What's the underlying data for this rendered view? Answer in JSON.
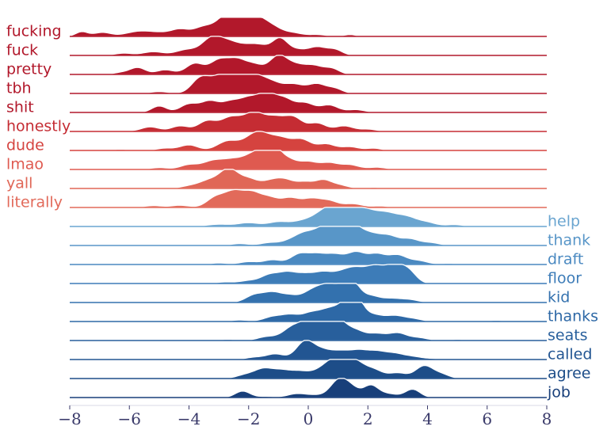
{
  "chart_data": {
    "type": "ridgeline",
    "title": "",
    "xlabel": "",
    "ylabel": "",
    "xlim": [
      -8,
      8
    ],
    "xticks": [
      "−8",
      "−6",
      "−4",
      "−2",
      "0",
      "2",
      "4",
      "6",
      "8"
    ],
    "xtick_values": [
      -8,
      -6,
      -4,
      -2,
      0,
      2,
      4,
      6,
      8
    ],
    "series": [
      {
        "name": "fucking",
        "side": "left",
        "color": "#b2182b",
        "peaks": [
          [
            -7.6,
            0.25,
            0.2
          ],
          [
            -6.9,
            0.22,
            0.3
          ],
          [
            -6.0,
            0.12,
            0.3
          ],
          [
            -5.5,
            0.25,
            0.35
          ],
          [
            -4.9,
            0.15,
            0.3
          ],
          [
            -4.3,
            0.38,
            0.3
          ],
          [
            -3.6,
            0.35,
            0.3
          ],
          [
            -3.0,
            0.5,
            0.4
          ],
          [
            -2.6,
            0.55,
            0.3
          ],
          [
            -2.2,
            1.0,
            0.45
          ],
          [
            -1.6,
            0.6,
            0.35
          ],
          [
            -1.1,
            0.3,
            0.3
          ],
          [
            -0.5,
            0.18,
            0.3
          ],
          [
            0.3,
            0.1,
            0.3
          ],
          [
            1.4,
            0.1,
            0.2
          ]
        ]
      },
      {
        "name": "fuck",
        "side": "left",
        "color": "#b2182b",
        "peaks": [
          [
            -6.2,
            0.12,
            0.3
          ],
          [
            -5.2,
            0.2,
            0.35
          ],
          [
            -4.1,
            0.3,
            0.35
          ],
          [
            -3.2,
            1.0,
            0.35
          ],
          [
            -2.6,
            0.5,
            0.3
          ],
          [
            -2.0,
            0.5,
            0.35
          ],
          [
            -1.5,
            0.35,
            0.3
          ],
          [
            -0.95,
            0.85,
            0.25
          ],
          [
            -0.4,
            0.3,
            0.3
          ],
          [
            0.3,
            0.45,
            0.3
          ],
          [
            0.9,
            0.3,
            0.25
          ]
        ]
      },
      {
        "name": "pretty",
        "side": "left",
        "color": "#b2182b",
        "peaks": [
          [
            -6.2,
            0.12,
            0.3
          ],
          [
            -5.7,
            0.35,
            0.25
          ],
          [
            -4.8,
            0.25,
            0.3
          ],
          [
            -3.8,
            0.6,
            0.3
          ],
          [
            -3.0,
            0.75,
            0.3
          ],
          [
            -2.4,
            0.75,
            0.3
          ],
          [
            -1.8,
            0.5,
            0.3
          ],
          [
            -1.0,
            1.0,
            0.3
          ],
          [
            -0.4,
            0.45,
            0.3
          ],
          [
            0.2,
            0.45,
            0.3
          ],
          [
            0.8,
            0.3,
            0.25
          ]
        ]
      },
      {
        "name": "tbh",
        "side": "left",
        "color": "#b2182b",
        "peaks": [
          [
            -5.0,
            0.1,
            0.3
          ],
          [
            -3.6,
            0.85,
            0.3
          ],
          [
            -3.0,
            0.7,
            0.3
          ],
          [
            -2.5,
            1.0,
            0.3
          ],
          [
            -1.8,
            0.95,
            0.35
          ],
          [
            -1.2,
            0.45,
            0.3
          ],
          [
            -0.5,
            0.5,
            0.35
          ],
          [
            0.3,
            0.5,
            0.3
          ],
          [
            0.9,
            0.25,
            0.25
          ]
        ]
      },
      {
        "name": "shit",
        "side": "left",
        "color": "#b2182b",
        "peaks": [
          [
            -6.5,
            0.05,
            0.3
          ],
          [
            -5.0,
            0.35,
            0.25
          ],
          [
            -4.0,
            0.45,
            0.3
          ],
          [
            -3.3,
            0.6,
            0.3
          ],
          [
            -2.6,
            0.55,
            0.3
          ],
          [
            -2.0,
            0.7,
            0.3
          ],
          [
            -1.4,
            0.95,
            0.3
          ],
          [
            -0.8,
            0.7,
            0.3
          ],
          [
            -0.1,
            0.5,
            0.3
          ],
          [
            0.7,
            0.4,
            0.3
          ],
          [
            1.6,
            0.15,
            0.3
          ]
        ]
      },
      {
        "name": "honestly",
        "side": "left",
        "color": "#c52c33",
        "peaks": [
          [
            -6.3,
            0.05,
            0.3
          ],
          [
            -5.3,
            0.25,
            0.3
          ],
          [
            -4.3,
            0.3,
            0.3
          ],
          [
            -3.4,
            0.55,
            0.3
          ],
          [
            -2.6,
            0.75,
            0.35
          ],
          [
            -1.8,
            1.0,
            0.35
          ],
          [
            -1.1,
            0.65,
            0.3
          ],
          [
            -0.5,
            0.75,
            0.3
          ],
          [
            0.3,
            0.45,
            0.3
          ],
          [
            1.2,
            0.3,
            0.3
          ],
          [
            2.0,
            0.12,
            0.3
          ]
        ]
      },
      {
        "name": "dude",
        "side": "left",
        "color": "#d5433f",
        "peaks": [
          [
            -6.3,
            0.06,
            0.3
          ],
          [
            -4.8,
            0.12,
            0.3
          ],
          [
            -4.0,
            0.3,
            0.3
          ],
          [
            -2.7,
            0.5,
            0.35
          ],
          [
            -1.7,
            1.0,
            0.4
          ],
          [
            -0.9,
            0.6,
            0.35
          ],
          [
            -0.2,
            0.55,
            0.3
          ],
          [
            0.6,
            0.35,
            0.3
          ],
          [
            1.4,
            0.2,
            0.3
          ],
          [
            2.2,
            0.12,
            0.25
          ]
        ]
      },
      {
        "name": "lmao",
        "side": "left",
        "color": "#df5a50",
        "peaks": [
          [
            -5.0,
            0.1,
            0.3
          ],
          [
            -4.0,
            0.25,
            0.3
          ],
          [
            -3.2,
            0.45,
            0.35
          ],
          [
            -2.5,
            0.5,
            0.35
          ],
          [
            -1.9,
            0.55,
            0.3
          ],
          [
            -1.5,
            0.65,
            0.3
          ],
          [
            -1.2,
            1.0,
            0.25
          ],
          [
            -0.7,
            0.55,
            0.3
          ],
          [
            0.0,
            0.4,
            0.3
          ],
          [
            0.7,
            0.35,
            0.3
          ],
          [
            1.4,
            0.25,
            0.3
          ],
          [
            2.3,
            0.12,
            0.3
          ]
        ]
      },
      {
        "name": "yall",
        "side": "left",
        "color": "#e06757",
        "peaks": [
          [
            -4.0,
            0.12,
            0.3
          ],
          [
            -3.3,
            0.45,
            0.35
          ],
          [
            -2.65,
            1.0,
            0.3
          ],
          [
            -2.0,
            0.5,
            0.3
          ],
          [
            -1.3,
            0.35,
            0.3
          ],
          [
            -0.8,
            0.45,
            0.3
          ],
          [
            -0.1,
            0.35,
            0.3
          ],
          [
            0.5,
            0.4,
            0.25
          ],
          [
            1.0,
            0.2,
            0.3
          ],
          [
            2.2,
            0.06,
            0.3
          ],
          [
            4.0,
            0.04,
            0.3
          ]
        ]
      },
      {
        "name": "literally",
        "side": "left",
        "color": "#e26a5a",
        "peaks": [
          [
            -5.2,
            0.1,
            0.3
          ],
          [
            -4.3,
            0.12,
            0.3
          ],
          [
            -3.1,
            0.55,
            0.3
          ],
          [
            -2.5,
            0.8,
            0.3
          ],
          [
            -1.9,
            0.75,
            0.3
          ],
          [
            -1.3,
            0.5,
            0.3
          ],
          [
            -0.6,
            0.5,
            0.3
          ],
          [
            0.1,
            0.45,
            0.3
          ],
          [
            0.7,
            0.35,
            0.3
          ],
          [
            1.5,
            0.2,
            0.3
          ],
          [
            2.4,
            0.08,
            0.3
          ]
        ]
      },
      {
        "name": "help",
        "side": "right",
        "color": "#6aa5d0",
        "peaks": [
          [
            -3.0,
            0.12,
            0.4
          ],
          [
            -2.0,
            0.2,
            0.35
          ],
          [
            -1.0,
            0.25,
            0.35
          ],
          [
            -0.2,
            0.25,
            0.35
          ],
          [
            0.6,
            0.85,
            0.4
          ],
          [
            1.2,
            1.0,
            0.35
          ],
          [
            1.9,
            0.8,
            0.35
          ],
          [
            2.6,
            0.65,
            0.35
          ],
          [
            3.3,
            0.5,
            0.35
          ],
          [
            4.0,
            0.2,
            0.3
          ],
          [
            4.9,
            0.1,
            0.3
          ]
        ]
      },
      {
        "name": "thank",
        "side": "right",
        "color": "#5896c8",
        "peaks": [
          [
            -2.3,
            0.1,
            0.3
          ],
          [
            -1.3,
            0.15,
            0.3
          ],
          [
            -0.6,
            0.25,
            0.3
          ],
          [
            -0.1,
            0.6,
            0.3
          ],
          [
            0.5,
            0.85,
            0.3
          ],
          [
            1.0,
            0.75,
            0.3
          ],
          [
            1.5,
            1.0,
            0.3
          ],
          [
            2.1,
            0.55,
            0.3
          ],
          [
            2.7,
            0.5,
            0.3
          ],
          [
            3.4,
            0.35,
            0.3
          ],
          [
            4.1,
            0.15,
            0.3
          ]
        ]
      },
      {
        "name": "draft",
        "side": "right",
        "color": "#4a89c1",
        "peaks": [
          [
            -3.0,
            0.08,
            0.3
          ],
          [
            -2.0,
            0.15,
            0.3
          ],
          [
            -1.2,
            0.25,
            0.3
          ],
          [
            -0.3,
            0.55,
            0.3
          ],
          [
            0.3,
            0.5,
            0.3
          ],
          [
            0.9,
            0.5,
            0.3
          ],
          [
            1.6,
            0.65,
            0.3
          ],
          [
            2.3,
            0.55,
            0.3
          ],
          [
            3.0,
            0.5,
            0.3
          ],
          [
            3.7,
            0.2,
            0.3
          ],
          [
            4.7,
            0.06,
            0.3
          ]
        ]
      },
      {
        "name": "floor",
        "side": "right",
        "color": "#3d7cb8",
        "peaks": [
          [
            -2.8,
            0.08,
            0.3
          ],
          [
            -2.0,
            0.15,
            0.3
          ],
          [
            -1.3,
            0.45,
            0.3
          ],
          [
            -0.7,
            0.55,
            0.3
          ],
          [
            -0.1,
            0.45,
            0.3
          ],
          [
            0.5,
            0.55,
            0.3
          ],
          [
            1.1,
            0.5,
            0.3
          ],
          [
            1.6,
            0.7,
            0.3
          ],
          [
            2.2,
            0.8,
            0.3
          ],
          [
            2.9,
            1.0,
            0.35
          ],
          [
            3.4,
            0.45,
            0.25
          ]
        ]
      },
      {
        "name": "kid",
        "side": "right",
        "color": "#3371ae",
        "peaks": [
          [
            -1.8,
            0.4,
            0.3
          ],
          [
            -1.2,
            0.5,
            0.3
          ],
          [
            -0.6,
            0.35,
            0.3
          ],
          [
            0.1,
            0.55,
            0.3
          ],
          [
            0.6,
            0.75,
            0.3
          ],
          [
            1.1,
            0.65,
            0.3
          ],
          [
            1.5,
            0.9,
            0.25
          ],
          [
            2.1,
            0.35,
            0.3
          ],
          [
            2.8,
            0.2,
            0.3
          ],
          [
            3.4,
            0.15,
            0.3
          ]
        ]
      },
      {
        "name": "thanks",
        "side": "right",
        "color": "#2d68a6",
        "peaks": [
          [
            -2.3,
            0.08,
            0.3
          ],
          [
            -1.2,
            0.25,
            0.3
          ],
          [
            -0.6,
            0.35,
            0.3
          ],
          [
            0.1,
            0.45,
            0.3
          ],
          [
            0.7,
            0.6,
            0.3
          ],
          [
            1.3,
            0.9,
            0.3
          ],
          [
            1.6,
            1.0,
            0.25
          ],
          [
            2.2,
            0.35,
            0.3
          ],
          [
            2.9,
            0.3,
            0.3
          ],
          [
            3.5,
            0.15,
            0.3
          ],
          [
            6.3,
            0.06,
            0.3
          ]
        ]
      },
      {
        "name": "seats",
        "side": "right",
        "color": "#285f9c",
        "peaks": [
          [
            -2.7,
            0.06,
            0.3
          ],
          [
            -1.4,
            0.2,
            0.3
          ],
          [
            -0.5,
            0.75,
            0.35
          ],
          [
            0.1,
            0.9,
            0.3
          ],
          [
            0.6,
            1.0,
            0.3
          ],
          [
            1.0,
            0.9,
            0.3
          ],
          [
            1.6,
            0.5,
            0.3
          ],
          [
            2.3,
            0.35,
            0.3
          ],
          [
            3.0,
            0.4,
            0.3
          ],
          [
            3.7,
            0.15,
            0.3
          ],
          [
            5.0,
            0.06,
            0.3
          ]
        ]
      },
      {
        "name": "called",
        "side": "right",
        "color": "#225592",
        "peaks": [
          [
            -1.8,
            0.12,
            0.3
          ],
          [
            -1.1,
            0.3,
            0.3
          ],
          [
            -0.1,
            1.0,
            0.3
          ],
          [
            0.5,
            0.45,
            0.3
          ],
          [
            1.1,
            0.4,
            0.3
          ],
          [
            1.7,
            0.45,
            0.3
          ],
          [
            2.3,
            0.4,
            0.3
          ],
          [
            2.9,
            0.3,
            0.3
          ],
          [
            3.5,
            0.15,
            0.3
          ],
          [
            4.2,
            0.05,
            0.3
          ]
        ]
      },
      {
        "name": "agree",
        "side": "right",
        "color": "#1d4d88",
        "peaks": [
          [
            -2.1,
            0.2,
            0.3
          ],
          [
            -1.5,
            0.5,
            0.3
          ],
          [
            -0.9,
            0.4,
            0.3
          ],
          [
            -0.3,
            0.35,
            0.3
          ],
          [
            0.3,
            0.3,
            0.3
          ],
          [
            0.8,
            0.85,
            0.3
          ],
          [
            1.2,
            0.7,
            0.25
          ],
          [
            1.6,
            0.8,
            0.3
          ],
          [
            2.2,
            0.45,
            0.3
          ],
          [
            3.0,
            0.3,
            0.3
          ],
          [
            3.9,
            0.7,
            0.3
          ],
          [
            4.5,
            0.2,
            0.25
          ]
        ]
      },
      {
        "name": "job",
        "side": "right",
        "color": "#183f7a",
        "peaks": [
          [
            -2.2,
            0.35,
            0.25
          ],
          [
            -1.4,
            0.06,
            0.3
          ],
          [
            -0.4,
            0.2,
            0.3
          ],
          [
            0.2,
            0.12,
            0.3
          ],
          [
            1.05,
            1.0,
            0.3
          ],
          [
            1.5,
            0.35,
            0.25
          ],
          [
            2.1,
            0.65,
            0.25
          ],
          [
            2.7,
            0.2,
            0.3
          ],
          [
            3.5,
            0.45,
            0.25
          ]
        ]
      }
    ]
  }
}
